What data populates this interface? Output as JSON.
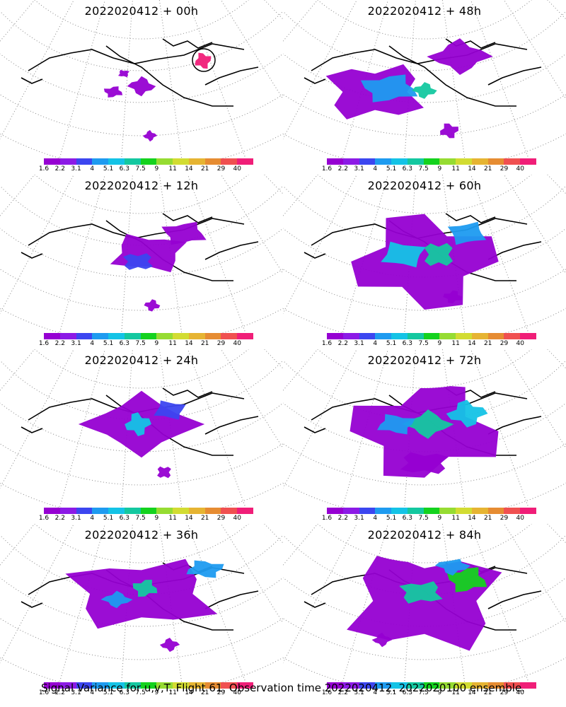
{
  "footer": "Signal Variance for u,v,T. Flight 61. Observation time 2022020412. 2022020100 ensemble.",
  "colorbar": {
    "tick_labels": [
      "1.6",
      "2.2",
      "3.1",
      "4",
      "5.1",
      "6.3",
      "7.5",
      "9",
      "11",
      "14",
      "21",
      "29",
      "40"
    ],
    "colors": [
      "#9600d2",
      "#8c1ae6",
      "#3c46f0",
      "#1e9bf0",
      "#14c3e6",
      "#14c8a0",
      "#14d21e",
      "#96dc32",
      "#d2dc32",
      "#e6b432",
      "#e68c32",
      "#f05050",
      "#f01e78"
    ]
  },
  "panels": [
    {
      "title": "2022020412 + 00h"
    },
    {
      "title": "2022020412 + 48h"
    },
    {
      "title": "2022020412 + 12h"
    },
    {
      "title": "2022020412 + 60h"
    },
    {
      "title": "2022020412 + 24h"
    },
    {
      "title": "2022020412 + 72h"
    },
    {
      "title": "2022020412 + 36h"
    },
    {
      "title": "2022020412 + 84h"
    }
  ]
}
